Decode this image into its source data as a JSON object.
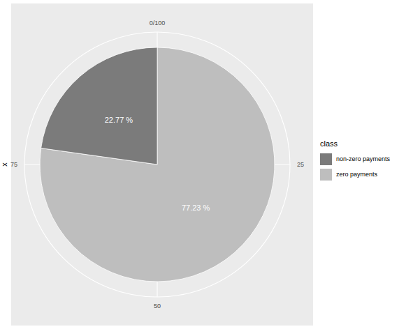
{
  "chart_data": {
    "type": "pie",
    "categories": [
      "non-zero payments",
      "zero payments"
    ],
    "values": [
      22.77,
      77.23
    ],
    "value_labels": [
      "22.77 %",
      "77.23 %"
    ],
    "data_labels": true,
    "colors": [
      "#7b7b7b",
      "#bebebe"
    ],
    "xlim": [
      0,
      100
    ],
    "xticks": [
      {
        "value": 0,
        "label": "0/100"
      },
      25,
      50,
      75
    ],
    "grid": true,
    "ylabel": "x",
    "legend_title": "class",
    "legend": "right"
  }
}
